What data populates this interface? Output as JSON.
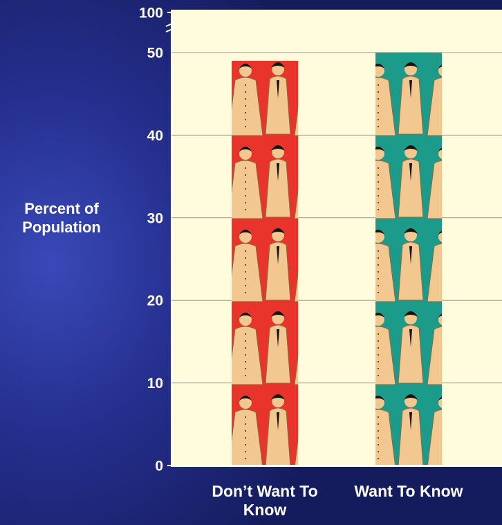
{
  "chart_data": {
    "type": "bar",
    "ylabel": "Percent of Population",
    "categories": [
      "Don’t Want To Know",
      "Want To Know"
    ],
    "values": [
      49,
      50
    ],
    "colors": [
      "#e8342b",
      "#1c9b8b"
    ],
    "ylim": [
      0,
      100
    ],
    "axis_break": [
      50,
      100
    ],
    "yticks": [
      0,
      10,
      20,
      30,
      40,
      50,
      100
    ],
    "grid": true
  }
}
